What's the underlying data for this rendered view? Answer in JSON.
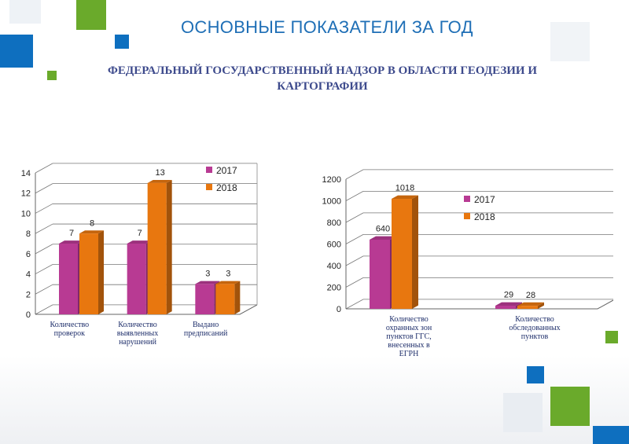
{
  "header": {
    "title": "ОСНОВНЫЕ ПОКАЗАТЕЛИ ЗА ГОД",
    "subtitle_line1": "ФЕДЕРАЛЬНЫЙ ГОСУДАРСТВЕННЫЙ НАДЗОР В ОБЛАСТИ ГЕОДЕЗИИ И",
    "subtitle_line2": "КАРТОГРАФИИ"
  },
  "colors": {
    "series_2017": "#b83a93",
    "series_2018": "#e8770f",
    "title": "#1f6fb6",
    "accent_blue": "#0e6fbf",
    "accent_green": "#6aaa2b"
  },
  "chart_data": [
    {
      "type": "bar",
      "categories": [
        [
          "Количество",
          "проверок"
        ],
        [
          "Количество",
          "выявленных",
          "нарушений"
        ],
        [
          "Выдано",
          "предписаний"
        ]
      ],
      "series": [
        {
          "name": "2017",
          "values": [
            7,
            7,
            3
          ]
        },
        {
          "name": "2018",
          "values": [
            8,
            13,
            3
          ]
        }
      ],
      "ylim": [
        0,
        14
      ],
      "yticks": [
        0,
        2,
        4,
        6,
        8,
        10,
        12,
        14
      ],
      "grid": true,
      "legend": "top-right"
    },
    {
      "type": "bar",
      "categories": [
        [
          "Количество",
          "охранных зон",
          "пунктов ГГС,",
          "внесенных в",
          "ЕГРН"
        ],
        [
          "Количество",
          "обследованных",
          "пунктов"
        ]
      ],
      "series": [
        {
          "name": "2017",
          "values": [
            640,
            29
          ]
        },
        {
          "name": "2018",
          "values": [
            1018,
            28
          ]
        }
      ],
      "ylim": [
        0,
        1200
      ],
      "yticks": [
        0,
        200,
        400,
        600,
        800,
        1000,
        1200
      ],
      "grid": true,
      "legend": "top-right"
    }
  ]
}
